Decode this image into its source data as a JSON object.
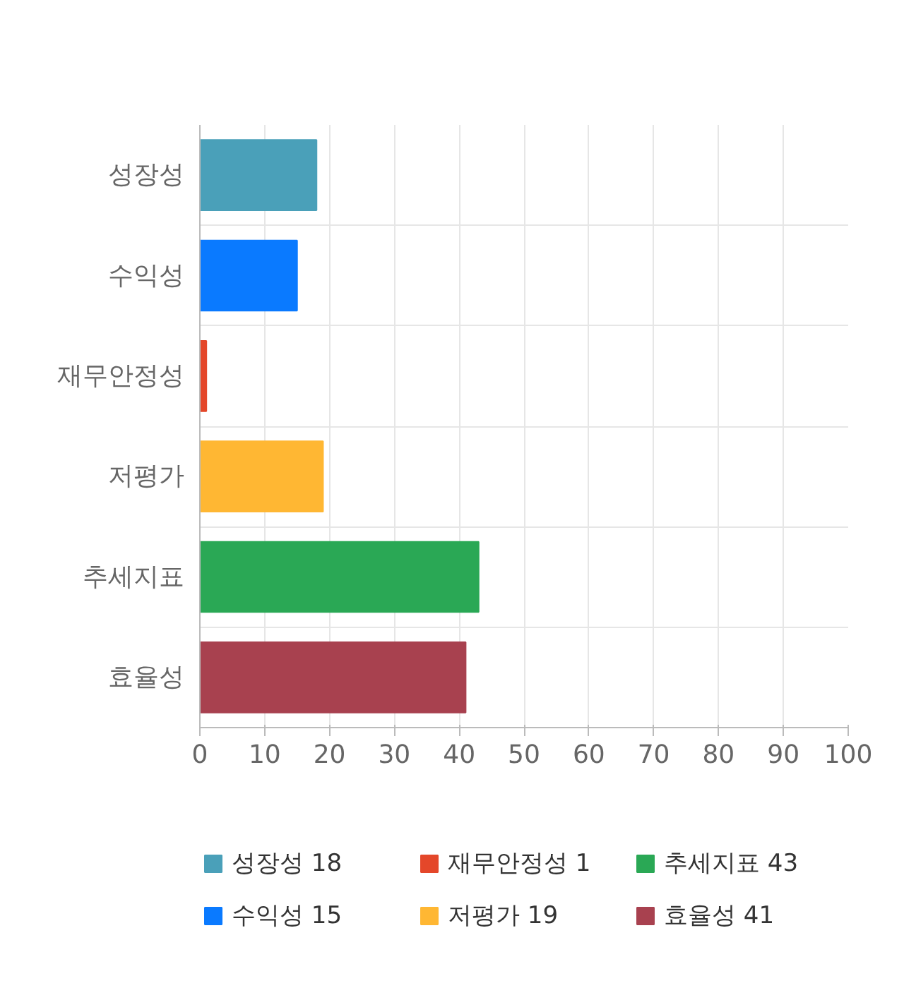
{
  "chart_data": {
    "type": "bar",
    "orientation": "horizontal",
    "categories": [
      "성장성",
      "수익성",
      "재무안정성",
      "저평가",
      "추세지표",
      "효율성"
    ],
    "series": [
      {
        "name": "성장성 18",
        "color": "#4aa0b9",
        "values": [
          18,
          null,
          null,
          null,
          null,
          null
        ]
      },
      {
        "name": "수익성 15",
        "color": "#0a7aff",
        "values": [
          null,
          15,
          null,
          null,
          null,
          null
        ]
      },
      {
        "name": "재무안정성 1",
        "color": "#e4472a",
        "values": [
          null,
          null,
          1,
          null,
          null,
          null
        ]
      },
      {
        "name": "저평가 19",
        "color": "#ffb733",
        "values": [
          null,
          null,
          null,
          19,
          null,
          null
        ]
      },
      {
        "name": "추세지표 43",
        "color": "#2aa855",
        "values": [
          null,
          null,
          null,
          null,
          43,
          null
        ]
      },
      {
        "name": "효율성 41",
        "color": "#a8414f",
        "values": [
          null,
          null,
          null,
          null,
          null,
          41
        ]
      }
    ],
    "xlim": [
      0,
      100
    ],
    "xticks": [
      0,
      10,
      20,
      30,
      40,
      50,
      60,
      70,
      80,
      90,
      100
    ],
    "grid": true,
    "legend": "bottom"
  }
}
